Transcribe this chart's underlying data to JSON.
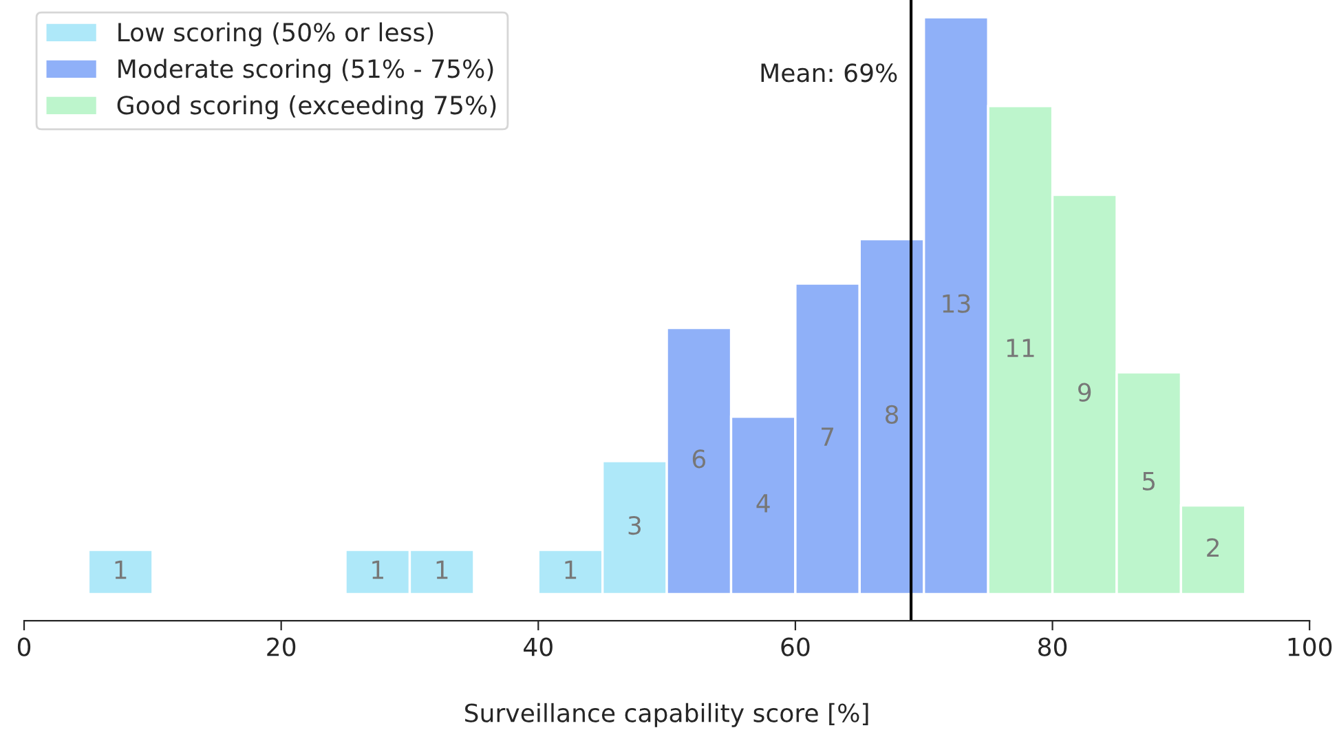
{
  "chart_data": {
    "type": "bar",
    "xlabel": "Surveillance capability score [%]",
    "series": [
      {
        "name": "Low scoring (50% or less)",
        "color": "#aee8f9",
        "x": [
          7.5,
          27.5,
          32.5,
          42.5,
          47.5
        ],
        "values": [
          1,
          1,
          1,
          1,
          3
        ]
      },
      {
        "name": "Moderate scoring (51% - 75%)",
        "color": "#8fb0f8",
        "x": [
          52.5,
          57.5,
          62.5,
          67.5,
          72.5
        ],
        "values": [
          6,
          4,
          7,
          8,
          13
        ]
      },
      {
        "name": "Good scoring (exceeding 75%)",
        "color": "#bdf5cc",
        "x": [
          77.5,
          82.5,
          87.5,
          92.5
        ],
        "values": [
          11,
          9,
          5,
          2
        ]
      }
    ],
    "data_labels": true,
    "xlim": [
      0,
      100
    ],
    "xticks": [
      0,
      20,
      40,
      60,
      80,
      100
    ],
    "ref_lines": [
      {
        "axis": "x",
        "value": 69,
        "label": "Mean: 69%",
        "color": "#000000"
      }
    ],
    "legend": "top left",
    "grid": false,
    "tick_labels": "x"
  }
}
